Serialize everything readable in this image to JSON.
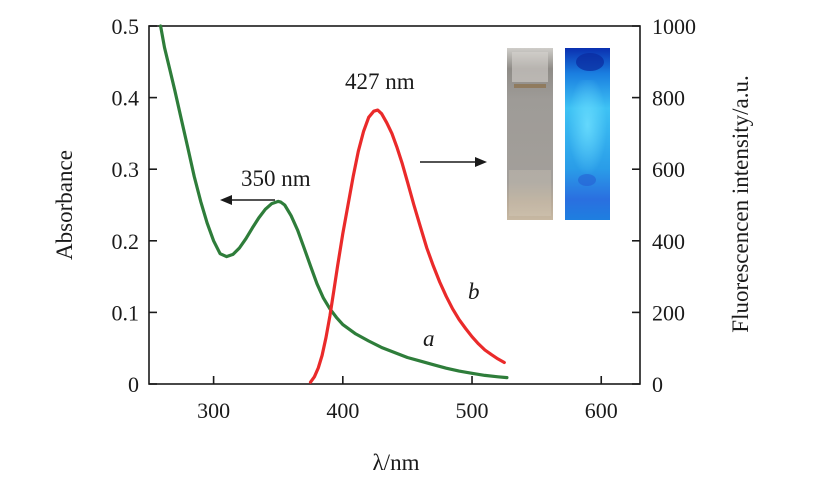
{
  "chart_data": {
    "type": "line",
    "xlabel": "λ/nm",
    "ylabel_left": "Absorbance",
    "ylabel_right": "Fluorescencen intensity/a.u.",
    "xlim": [
      250,
      630
    ],
    "ylim_left": [
      0,
      0.5
    ],
    "ylim_right": [
      0,
      1000
    ],
    "x_ticks": [
      300,
      400,
      500,
      600
    ],
    "y_left_ticks": [
      0,
      0.1,
      0.2,
      0.3,
      0.4,
      0.5
    ],
    "y_left_tick_labels": [
      "0",
      "0.1",
      "0.2",
      "0.3",
      "0.4",
      "0.5"
    ],
    "y_right_ticks": [
      0,
      200,
      400,
      600,
      800,
      1000
    ],
    "series": [
      {
        "label": "a",
        "axis": "left",
        "color": "#2e7d3a",
        "x": [
          259,
          262,
          266,
          270,
          275,
          280,
          285,
          290,
          295,
          300,
          305,
          310,
          315,
          320,
          325,
          330,
          335,
          340,
          345,
          350,
          352,
          355,
          360,
          365,
          370,
          375,
          380,
          385,
          390,
          395,
          400,
          410,
          420,
          430,
          440,
          450,
          460,
          470,
          480,
          490,
          500,
          510,
          520,
          527
        ],
        "y": [
          0.5,
          0.47,
          0.44,
          0.41,
          0.37,
          0.33,
          0.29,
          0.255,
          0.225,
          0.2,
          0.182,
          0.178,
          0.181,
          0.19,
          0.203,
          0.218,
          0.232,
          0.244,
          0.252,
          0.255,
          0.254,
          0.25,
          0.235,
          0.215,
          0.19,
          0.165,
          0.14,
          0.12,
          0.105,
          0.093,
          0.083,
          0.07,
          0.06,
          0.051,
          0.044,
          0.037,
          0.032,
          0.027,
          0.022,
          0.018,
          0.015,
          0.012,
          0.01,
          0.009
        ]
      },
      {
        "label": "b",
        "axis": "right",
        "color": "#ea2a2a",
        "x": [
          375,
          378,
          381,
          384,
          387,
          390,
          393,
          396,
          400,
          404,
          408,
          412,
          416,
          420,
          424,
          427,
          430,
          434,
          438,
          442,
          446,
          450,
          455,
          460,
          465,
          470,
          475,
          480,
          485,
          490,
          495,
          500,
          505,
          510,
          515,
          520,
          525
        ],
        "y": [
          5,
          20,
          45,
          80,
          130,
          190,
          260,
          330,
          420,
          500,
          580,
          650,
          705,
          745,
          762,
          765,
          755,
          730,
          700,
          660,
          615,
          565,
          500,
          440,
          380,
          330,
          285,
          245,
          210,
          180,
          155,
          132,
          112,
          95,
          82,
          70,
          60
        ]
      }
    ],
    "annotations": [
      {
        "text": "350 nm",
        "x": 350,
        "axis": "left"
      },
      {
        "text": "427 nm",
        "x": 427,
        "axis": "right"
      }
    ],
    "curve_labels": [
      "a",
      "b"
    ],
    "legend": "none",
    "grid": false
  },
  "inset_photos": [
    {
      "name": "vial-daylight",
      "tint": "#9c9892"
    },
    {
      "name": "vial-uv",
      "tint": "#2aa3e6"
    }
  ]
}
